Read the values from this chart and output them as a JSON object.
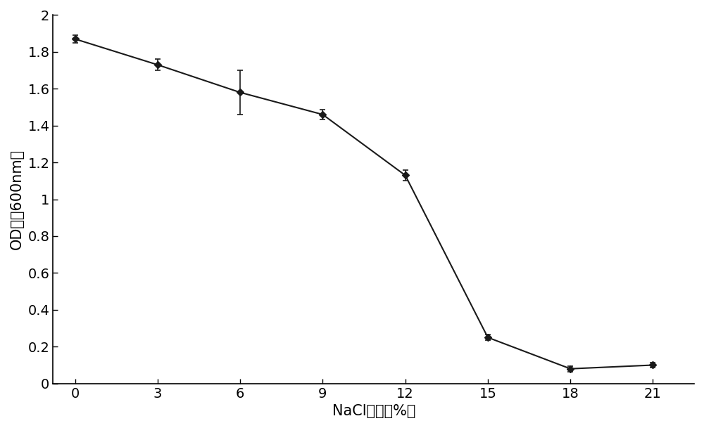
{
  "x": [
    0,
    3,
    6,
    9,
    12,
    15,
    18,
    21
  ],
  "y": [
    1.87,
    1.73,
    1.58,
    1.46,
    1.13,
    0.25,
    0.08,
    0.1
  ],
  "yerr": [
    0.02,
    0.03,
    0.12,
    0.025,
    0.03,
    0.015,
    0.015,
    0.015
  ],
  "xlabel": "NaCl浓度（%）",
  "ylabel": "OD值（600nm）",
  "xlim": [
    -0.8,
    22.5
  ],
  "ylim": [
    0,
    2.0
  ],
  "yticks": [
    0,
    0.2,
    0.4,
    0.6,
    0.8,
    1.0,
    1.2,
    1.4,
    1.6,
    1.8,
    2.0
  ],
  "ytick_labels": [
    "0",
    "0.2",
    "0.4",
    "0.6",
    "0.8",
    "1",
    "1.2",
    "1.4",
    "1.6",
    "1.8",
    "2"
  ],
  "xticks": [
    0,
    3,
    6,
    9,
    12,
    15,
    18,
    21
  ],
  "line_color": "#1a1a1a",
  "marker": "D",
  "markersize": 5,
  "capsize": 3,
  "linewidth": 1.5,
  "background_color": "#ffffff",
  "xlabel_fontsize": 15,
  "ylabel_fontsize": 15,
  "tick_fontsize": 14
}
